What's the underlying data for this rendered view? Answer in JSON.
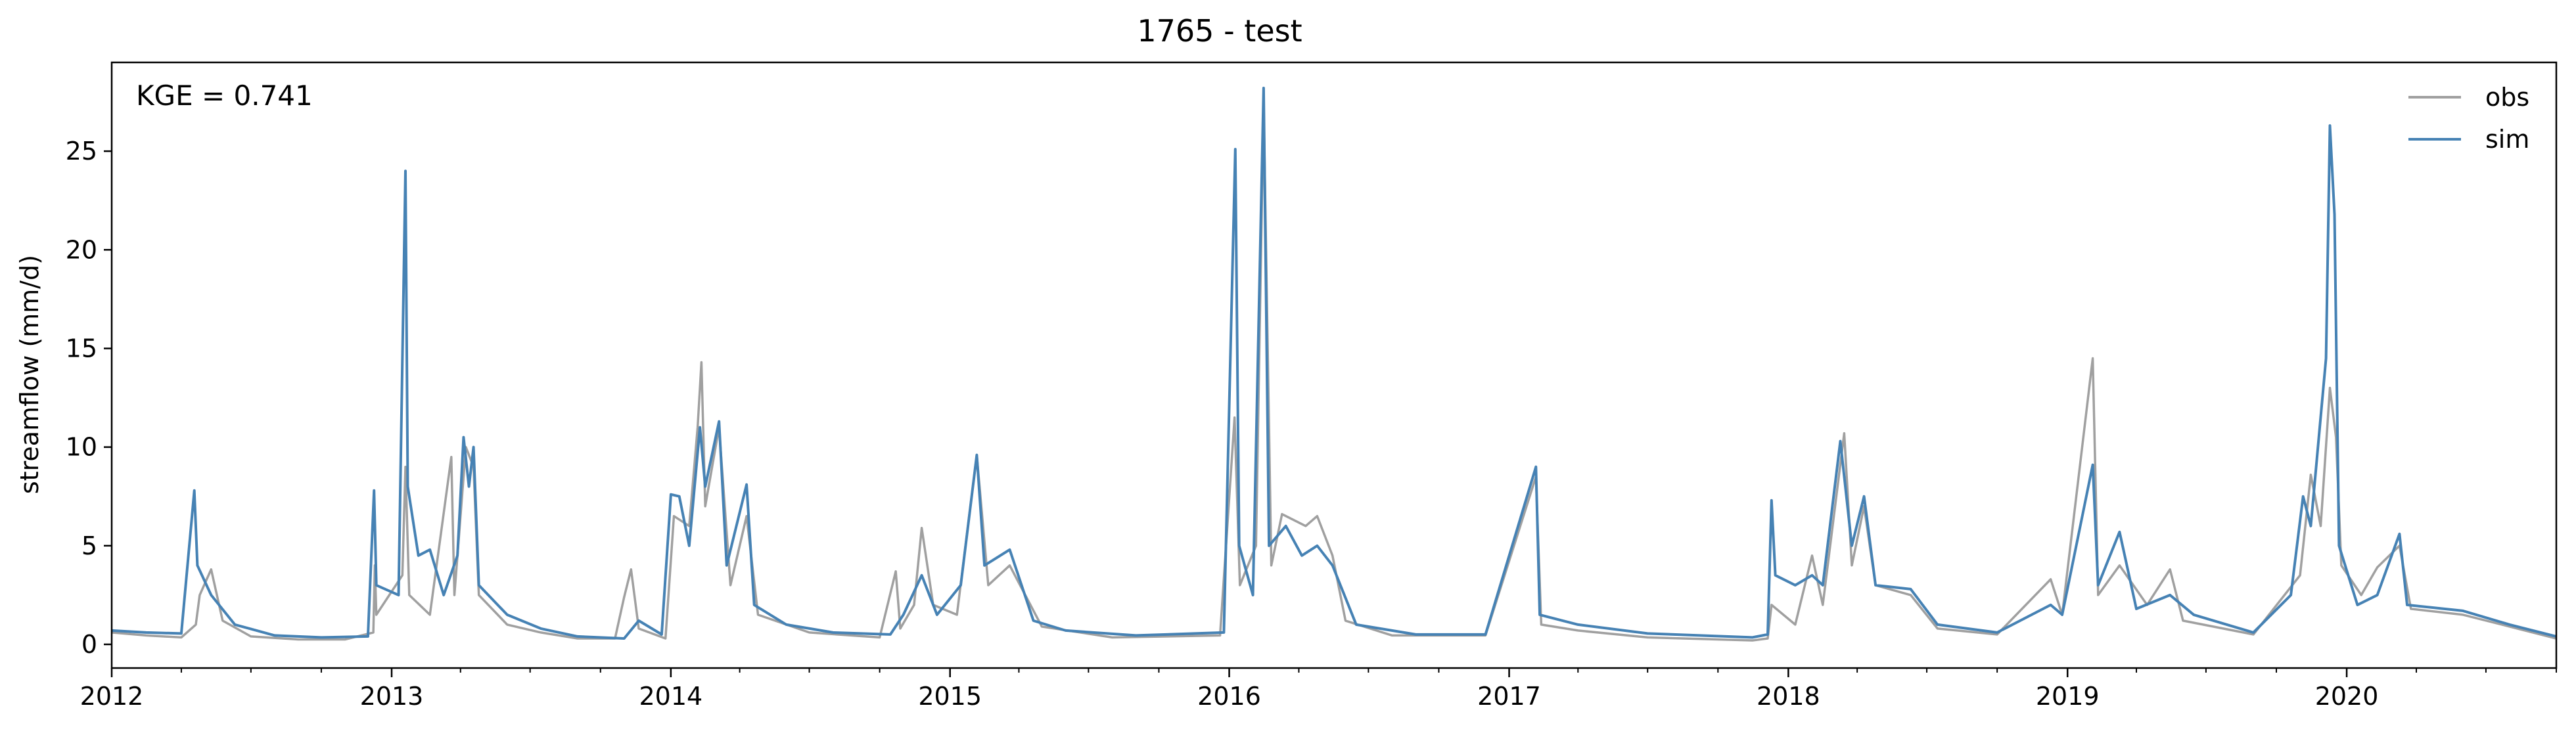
{
  "chart_data": {
    "type": "line",
    "title": "1765 - test",
    "ylabel": "streamflow (mm/d)",
    "xlabel": "",
    "annotation": "KGE = 0.741",
    "legend": {
      "position": "top-right",
      "entries": [
        "obs",
        "sim"
      ]
    },
    "grid": false,
    "xlim": [
      "2012-01-01",
      "2020-10-01"
    ],
    "ylim": [
      -1.2,
      29.5
    ],
    "x_ticks": [
      "2012",
      "2013",
      "2014",
      "2015",
      "2016",
      "2017",
      "2018",
      "2019",
      "2020"
    ],
    "y_ticks": [
      0,
      5,
      10,
      15,
      20,
      25
    ],
    "colors": {
      "obs": "#a0a0a0",
      "sim": "#4682b4"
    },
    "series": [
      {
        "name": "obs",
        "color": "#a0a0a0",
        "points": [
          [
            "2012-01-01",
            0.6
          ],
          [
            "2012-02-15",
            0.45
          ],
          [
            "2012-04-01",
            0.35
          ],
          [
            "2012-04-20",
            1.0
          ],
          [
            "2012-04-25",
            2.5
          ],
          [
            "2012-05-10",
            3.8
          ],
          [
            "2012-05-25",
            1.2
          ],
          [
            "2012-07-01",
            0.4
          ],
          [
            "2012-09-01",
            0.25
          ],
          [
            "2012-11-01",
            0.25
          ],
          [
            "2012-12-08",
            0.6
          ],
          [
            "2012-12-10",
            4.0
          ],
          [
            "2012-12-12",
            1.5
          ],
          [
            "2013-01-15",
            3.5
          ],
          [
            "2013-01-19",
            9.0
          ],
          [
            "2013-01-24",
            2.5
          ],
          [
            "2013-02-20",
            1.5
          ],
          [
            "2013-03-20",
            9.5
          ],
          [
            "2013-03-24",
            2.5
          ],
          [
            "2013-04-08",
            10.0
          ],
          [
            "2013-04-18",
            9.0
          ],
          [
            "2013-04-25",
            2.5
          ],
          [
            "2013-06-01",
            1.0
          ],
          [
            "2013-07-15",
            0.6
          ],
          [
            "2013-09-01",
            0.3
          ],
          [
            "2013-10-20",
            0.3
          ],
          [
            "2013-11-01",
            2.4
          ],
          [
            "2013-11-10",
            3.8
          ],
          [
            "2013-11-20",
            0.8
          ],
          [
            "2013-12-25",
            0.3
          ],
          [
            "2014-01-05",
            6.5
          ],
          [
            "2014-01-25",
            6.0
          ],
          [
            "2014-02-05",
            11.0
          ],
          [
            "2014-02-10",
            14.3
          ],
          [
            "2014-02-15",
            7.0
          ],
          [
            "2014-03-05",
            11.0
          ],
          [
            "2014-03-20",
            3.0
          ],
          [
            "2014-04-10",
            6.5
          ],
          [
            "2014-04-25",
            1.5
          ],
          [
            "2014-07-01",
            0.6
          ],
          [
            "2014-10-01",
            0.35
          ],
          [
            "2014-10-22",
            3.7
          ],
          [
            "2014-10-28",
            0.8
          ],
          [
            "2014-11-15",
            2.0
          ],
          [
            "2014-11-25",
            5.9
          ],
          [
            "2014-12-10",
            2.0
          ],
          [
            "2015-01-10",
            1.5
          ],
          [
            "2015-02-05",
            9.6
          ],
          [
            "2015-02-20",
            3.0
          ],
          [
            "2015-03-20",
            4.0
          ],
          [
            "2015-05-01",
            0.9
          ],
          [
            "2015-08-01",
            0.35
          ],
          [
            "2015-12-20",
            0.45
          ],
          [
            "2016-01-08",
            11.5
          ],
          [
            "2016-01-15",
            3.0
          ],
          [
            "2016-02-05",
            5.0
          ],
          [
            "2016-02-15",
            27.5
          ],
          [
            "2016-02-25",
            4.0
          ],
          [
            "2016-03-10",
            6.6
          ],
          [
            "2016-04-10",
            6.0
          ],
          [
            "2016-04-25",
            6.5
          ],
          [
            "2016-05-15",
            4.5
          ],
          [
            "2016-06-01",
            1.2
          ],
          [
            "2016-08-01",
            0.45
          ],
          [
            "2016-12-01",
            0.45
          ],
          [
            "2017-02-05",
            8.5
          ],
          [
            "2017-02-12",
            1.0
          ],
          [
            "2017-04-01",
            0.7
          ],
          [
            "2017-07-01",
            0.35
          ],
          [
            "2017-11-15",
            0.2
          ],
          [
            "2017-12-05",
            0.3
          ],
          [
            "2017-12-10",
            2.0
          ],
          [
            "2018-01-10",
            1.0
          ],
          [
            "2018-02-01",
            4.5
          ],
          [
            "2018-02-15",
            2.0
          ],
          [
            "2018-03-15",
            10.7
          ],
          [
            "2018-03-25",
            4.0
          ],
          [
            "2018-04-10",
            7.0
          ],
          [
            "2018-04-25",
            3.0
          ],
          [
            "2018-06-10",
            2.5
          ],
          [
            "2018-07-15",
            0.8
          ],
          [
            "2018-10-01",
            0.5
          ],
          [
            "2018-12-10",
            3.3
          ],
          [
            "2018-12-25",
            1.5
          ],
          [
            "2019-02-03",
            14.5
          ],
          [
            "2019-02-10",
            2.5
          ],
          [
            "2019-03-10",
            4.0
          ],
          [
            "2019-04-15",
            2.0
          ],
          [
            "2019-05-15",
            3.8
          ],
          [
            "2019-06-01",
            1.2
          ],
          [
            "2019-09-01",
            0.5
          ],
          [
            "2019-11-01",
            3.5
          ],
          [
            "2019-11-15",
            8.6
          ],
          [
            "2019-11-28",
            6.0
          ],
          [
            "2019-12-10",
            13.0
          ],
          [
            "2019-12-18",
            10.5
          ],
          [
            "2019-12-25",
            4.0
          ],
          [
            "2020-01-20",
            2.5
          ],
          [
            "2020-02-10",
            3.9
          ],
          [
            "2020-03-10",
            5.0
          ],
          [
            "2020-03-25",
            1.8
          ],
          [
            "2020-06-01",
            1.5
          ],
          [
            "2020-08-01",
            0.9
          ],
          [
            "2020-10-01",
            0.3
          ]
        ]
      },
      {
        "name": "sim",
        "color": "#4682b4",
        "points": [
          [
            "2012-01-01",
            0.7
          ],
          [
            "2012-02-15",
            0.6
          ],
          [
            "2012-04-01",
            0.55
          ],
          [
            "2012-04-18",
            7.8
          ],
          [
            "2012-04-22",
            4.0
          ],
          [
            "2012-05-10",
            2.5
          ],
          [
            "2012-06-10",
            1.0
          ],
          [
            "2012-08-01",
            0.45
          ],
          [
            "2012-10-01",
            0.35
          ],
          [
            "2012-12-01",
            0.4
          ],
          [
            "2012-12-09",
            7.8
          ],
          [
            "2012-12-12",
            3.0
          ],
          [
            "2013-01-10",
            2.5
          ],
          [
            "2013-01-19",
            24.0
          ],
          [
            "2013-01-22",
            8.0
          ],
          [
            "2013-02-05",
            4.5
          ],
          [
            "2013-02-20",
            4.8
          ],
          [
            "2013-03-10",
            2.5
          ],
          [
            "2013-03-28",
            4.5
          ],
          [
            "2013-04-05",
            10.5
          ],
          [
            "2013-04-12",
            8.0
          ],
          [
            "2013-04-18",
            10.0
          ],
          [
            "2013-04-25",
            3.0
          ],
          [
            "2013-06-01",
            1.5
          ],
          [
            "2013-07-15",
            0.8
          ],
          [
            "2013-09-01",
            0.4
          ],
          [
            "2013-11-01",
            0.3
          ],
          [
            "2013-11-20",
            1.2
          ],
          [
            "2013-12-20",
            0.5
          ],
          [
            "2014-01-01",
            7.6
          ],
          [
            "2014-01-12",
            7.5
          ],
          [
            "2014-01-25",
            5.0
          ],
          [
            "2014-02-08",
            11.0
          ],
          [
            "2014-02-15",
            8.0
          ],
          [
            "2014-03-05",
            11.3
          ],
          [
            "2014-03-15",
            4.0
          ],
          [
            "2014-04-10",
            8.1
          ],
          [
            "2014-04-20",
            2.0
          ],
          [
            "2014-06-01",
            1.0
          ],
          [
            "2014-08-01",
            0.6
          ],
          [
            "2014-10-15",
            0.5
          ],
          [
            "2014-11-01",
            1.5
          ],
          [
            "2014-11-25",
            3.5
          ],
          [
            "2014-12-15",
            1.5
          ],
          [
            "2015-01-15",
            3.0
          ],
          [
            "2015-02-05",
            9.6
          ],
          [
            "2015-02-15",
            4.0
          ],
          [
            "2015-03-20",
            4.8
          ],
          [
            "2015-04-20",
            1.2
          ],
          [
            "2015-06-01",
            0.7
          ],
          [
            "2015-09-01",
            0.45
          ],
          [
            "2015-12-25",
            0.6
          ],
          [
            "2016-01-09",
            25.1
          ],
          [
            "2016-01-14",
            5.0
          ],
          [
            "2016-02-01",
            2.5
          ],
          [
            "2016-02-15",
            28.2
          ],
          [
            "2016-02-22",
            5.0
          ],
          [
            "2016-03-15",
            6.0
          ],
          [
            "2016-04-05",
            4.5
          ],
          [
            "2016-04-25",
            5.0
          ],
          [
            "2016-05-15",
            4.0
          ],
          [
            "2016-06-15",
            1.0
          ],
          [
            "2016-09-01",
            0.5
          ],
          [
            "2016-12-01",
            0.5
          ],
          [
            "2017-02-05",
            9.0
          ],
          [
            "2017-02-10",
            1.5
          ],
          [
            "2017-04-01",
            1.0
          ],
          [
            "2017-07-01",
            0.55
          ],
          [
            "2017-11-15",
            0.35
          ],
          [
            "2017-12-05",
            0.5
          ],
          [
            "2017-12-10",
            7.3
          ],
          [
            "2017-12-15",
            3.5
          ],
          [
            "2018-01-10",
            3.0
          ],
          [
            "2018-02-01",
            3.5
          ],
          [
            "2018-02-15",
            3.0
          ],
          [
            "2018-03-10",
            10.3
          ],
          [
            "2018-03-25",
            5.0
          ],
          [
            "2018-04-10",
            7.5
          ],
          [
            "2018-04-25",
            3.0
          ],
          [
            "2018-06-10",
            2.8
          ],
          [
            "2018-07-15",
            1.0
          ],
          [
            "2018-10-01",
            0.6
          ],
          [
            "2018-12-10",
            2.0
          ],
          [
            "2018-12-25",
            1.5
          ],
          [
            "2019-02-03",
            9.1
          ],
          [
            "2019-02-10",
            3.0
          ],
          [
            "2019-03-10",
            5.7
          ],
          [
            "2019-04-01",
            1.8
          ],
          [
            "2019-05-15",
            2.5
          ],
          [
            "2019-06-15",
            1.5
          ],
          [
            "2019-09-01",
            0.6
          ],
          [
            "2019-10-20",
            2.5
          ],
          [
            "2019-11-05",
            7.5
          ],
          [
            "2019-11-15",
            6.0
          ],
          [
            "2019-12-05",
            14.5
          ],
          [
            "2019-12-10",
            26.3
          ],
          [
            "2019-12-16",
            21.8
          ],
          [
            "2019-12-22",
            5.0
          ],
          [
            "2020-01-15",
            2.0
          ],
          [
            "2020-02-10",
            2.5
          ],
          [
            "2020-03-10",
            5.6
          ],
          [
            "2020-03-20",
            2.0
          ],
          [
            "2020-06-01",
            1.7
          ],
          [
            "2020-08-01",
            1.0
          ],
          [
            "2020-10-01",
            0.4
          ]
        ]
      }
    ]
  }
}
